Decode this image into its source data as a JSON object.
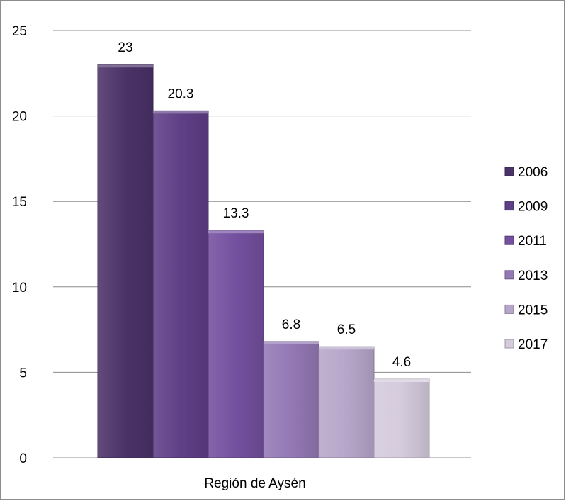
{
  "chart_data": {
    "type": "bar",
    "categories": [
      "Región de Aysén"
    ],
    "series": [
      {
        "name": "2006",
        "values": [
          23
        ],
        "color": "#4b3268"
      },
      {
        "name": "2009",
        "values": [
          20.3
        ],
        "color": "#5f3f86"
      },
      {
        "name": "2011",
        "values": [
          13.3
        ],
        "color": "#74509f"
      },
      {
        "name": "2013",
        "values": [
          6.8
        ],
        "color": "#9479b5"
      },
      {
        "name": "2015",
        "values": [
          6.5
        ],
        "color": "#b7a6ca"
      },
      {
        "name": "2017",
        "values": [
          4.6
        ],
        "color": "#d4cbdd"
      }
    ],
    "y_ticks": [
      "0",
      "5",
      "10",
      "15",
      "20",
      "25"
    ],
    "data_labels": [
      "23",
      "20.3",
      "13.3",
      "6.8",
      "6.5",
      "4.6"
    ],
    "ylim": [
      0,
      25
    ],
    "grid": true,
    "legend": "right",
    "title": "",
    "xlabel": "",
    "ylabel": ""
  }
}
